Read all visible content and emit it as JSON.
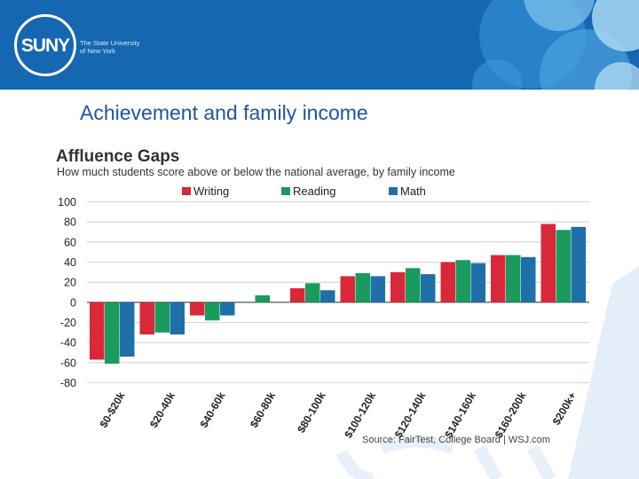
{
  "slide": {
    "logo_text": "SUNY",
    "logo_subtitle_line1": "The State University",
    "logo_subtitle_line2": "of New York",
    "title": "Achievement and family income"
  },
  "colors": {
    "banner": "#1467b0",
    "title": "#1e55a0",
    "writing": "#d9283a",
    "reading": "#1a9a5c",
    "math": "#1f6fa8"
  },
  "chart_data": {
    "type": "bar",
    "title": "Affluence Gaps",
    "subtitle": "How much students score above or below the national average, by family income",
    "categories": [
      "$0-$20k",
      "$20-40k",
      "$40-60k",
      "$60-80k",
      "$80-100k",
      "$100-120k",
      "$120-140k",
      "$140-160k",
      "$160-200k",
      "$200k+"
    ],
    "series": [
      {
        "name": "Writing",
        "color": "#d9283a",
        "values": [
          -57,
          -32,
          -13,
          0,
          14,
          26,
          30,
          40,
          47,
          78
        ]
      },
      {
        "name": "Reading",
        "color": "#1a9a5c",
        "values": [
          -61,
          -30,
          -18,
          7,
          19,
          29,
          34,
          42,
          47,
          72
        ]
      },
      {
        "name": "Math",
        "color": "#1f6fa8",
        "values": [
          -54,
          -32,
          -13,
          0,
          12,
          26,
          28,
          39,
          45,
          75
        ]
      }
    ],
    "yticks": [
      100,
      80,
      60,
      40,
      20,
      0,
      -20,
      -40,
      -60,
      -80
    ],
    "ylim": [
      -80,
      100
    ],
    "legend_position": "top",
    "grid": true,
    "source": "Source: FairTest, College Board | WSJ.com"
  }
}
